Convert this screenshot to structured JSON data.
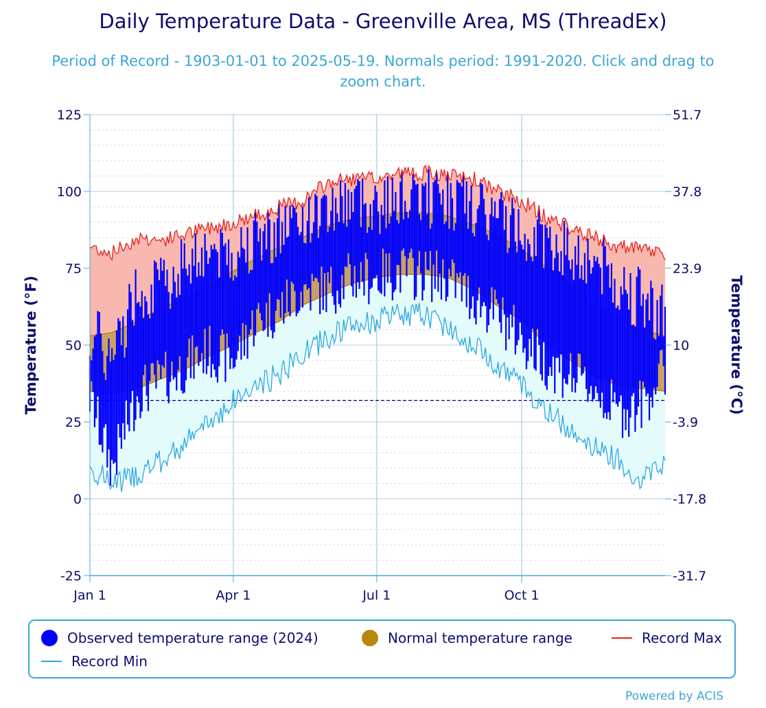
{
  "title": "Daily Temperature Data - Greenville Area, MS (ThreadEx)",
  "subtitle": "Period of Record - 1903-01-01 to 2025-05-19. Normals period: 1991-2020. Click and drag to zoom chart.",
  "credit": "Powered by ACIS",
  "colors": {
    "observed": "#0000ff",
    "normal_fill": "#c8a261",
    "normal_line": "#b8860b",
    "record_max": "#e8201a",
    "record_max_fill": "#f8b8b0",
    "record_min": "#28a8e0",
    "record_min_fill": "#e4fbfb",
    "freezing_line": "#000080",
    "grid": "#c8d4e8",
    "axis_text": "#0d0d6e"
  },
  "legend": {
    "observed": "Observed temperature range (2024)",
    "normal": "Normal temperature range",
    "record_max": "Record Max",
    "record_min": "Record Min"
  },
  "chart_data": {
    "type": "area",
    "title": "Daily Temperature Data - Greenville Area, MS (ThreadEx)",
    "subtitle": "Period of Record - 1903-01-01 to 2025-05-19. Normals period: 1991-2020. Click and drag to zoom chart.",
    "ylabel": "Temperature (°F)",
    "ylabel_right": "Temperature (°C)",
    "ylim": [
      -25,
      125
    ],
    "yticks_left": [
      "125",
      "100",
      "75",
      "50",
      "25",
      "0",
      "-25"
    ],
    "yticks_right": [
      "51.7",
      "37.8",
      "23.9",
      "10",
      "-3.9",
      "-17.8",
      "-31.7"
    ],
    "xticks": [
      "Jan 1",
      "Apr 1",
      "Jul 1",
      "Oct 1"
    ],
    "xtick_days": [
      0,
      91,
      182,
      274
    ],
    "days_in_year": 366,
    "freezing_line": 32,
    "grid": true,
    "legend_position": "bottom",
    "series": [
      {
        "name": "Record Max",
        "x": [
          "Jan 1",
          "Jan 15",
          "Feb 1",
          "Feb 15",
          "Mar 1",
          "Mar 15",
          "Apr 1",
          "Apr 15",
          "May 1",
          "May 15",
          "Jun 1",
          "Jun 15",
          "Jul 1",
          "Jul 15",
          "Aug 1",
          "Aug 15",
          "Sep 1",
          "Sep 15",
          "Oct 1",
          "Oct 15",
          "Nov 1",
          "Nov 15",
          "Dec 1",
          "Dec 15",
          "Dec 31"
        ],
        "values": [
          82,
          80,
          85,
          84,
          86,
          88,
          90,
          92,
          95,
          97,
          103,
          104,
          104,
          106,
          106,
          105,
          104,
          100,
          97,
          92,
          88,
          85,
          82,
          81,
          80
        ]
      },
      {
        "name": "Record Min",
        "x": [
          "Jan 1",
          "Jan 15",
          "Feb 1",
          "Feb 15",
          "Mar 1",
          "Mar 15",
          "Apr 1",
          "Apr 15",
          "May 1",
          "May 15",
          "Jun 1",
          "Jun 15",
          "Jul 1",
          "Jul 15",
          "Aug 1",
          "Aug 15",
          "Sep 1",
          "Sep 15",
          "Oct 1",
          "Oct 15",
          "Nov 1",
          "Nov 15",
          "Dec 1",
          "Dec 15",
          "Dec 31"
        ],
        "values": [
          10,
          5,
          8,
          12,
          18,
          24,
          32,
          36,
          41,
          47,
          53,
          56,
          58,
          60,
          60,
          56,
          50,
          44,
          37,
          29,
          23,
          17,
          13,
          6,
          12
        ]
      },
      {
        "name": "Normal temperature range",
        "x": [
          "Jan 1",
          "Jan 15",
          "Feb 1",
          "Feb 15",
          "Mar 1",
          "Mar 15",
          "Apr 1",
          "Apr 15",
          "May 1",
          "May 15",
          "Jun 1",
          "Jun 15",
          "Jul 1",
          "Jul 15",
          "Aug 1",
          "Aug 15",
          "Sep 1",
          "Sep 15",
          "Oct 1",
          "Oct 15",
          "Nov 1",
          "Nov 15",
          "Dec 1",
          "Dec 15",
          "Dec 31"
        ],
        "high": [
          53,
          54,
          58,
          62,
          65,
          69,
          74,
          78,
          82,
          85,
          89,
          91,
          92,
          93,
          93,
          92,
          89,
          86,
          81,
          76,
          70,
          64,
          59,
          55,
          53
        ],
        "low": [
          35,
          34,
          36,
          39,
          42,
          46,
          50,
          54,
          58,
          63,
          67,
          70,
          72,
          73,
          73,
          72,
          68,
          63,
          58,
          51,
          45,
          40,
          37,
          36,
          35
        ]
      },
      {
        "name": "Observed temperature range (2024)",
        "x": [
          "Jan 1",
          "Jan 15",
          "Feb 1",
          "Feb 15",
          "Mar 1",
          "Mar 15",
          "Apr 1",
          "Apr 15",
          "May 1",
          "May 15",
          "Jun 1",
          "Jun 15",
          "Jul 1",
          "Jul 15",
          "Aug 1",
          "Aug 15",
          "Sep 1",
          "Sep 15",
          "Oct 1",
          "Oct 15",
          "Nov 1",
          "Nov 15",
          "Dec 1",
          "Dec 15",
          "Dec 31"
        ],
        "high": [
          55,
          45,
          70,
          68,
          78,
          82,
          80,
          86,
          88,
          92,
          95,
          98,
          96,
          100,
          98,
          99,
          94,
          92,
          88,
          86,
          80,
          78,
          70,
          65,
          60
        ],
        "low": [
          33,
          10,
          35,
          38,
          43,
          48,
          45,
          58,
          62,
          68,
          68,
          72,
          72,
          74,
          73,
          72,
          65,
          60,
          52,
          45,
          40,
          36,
          28,
          30,
          42
        ]
      }
    ]
  }
}
